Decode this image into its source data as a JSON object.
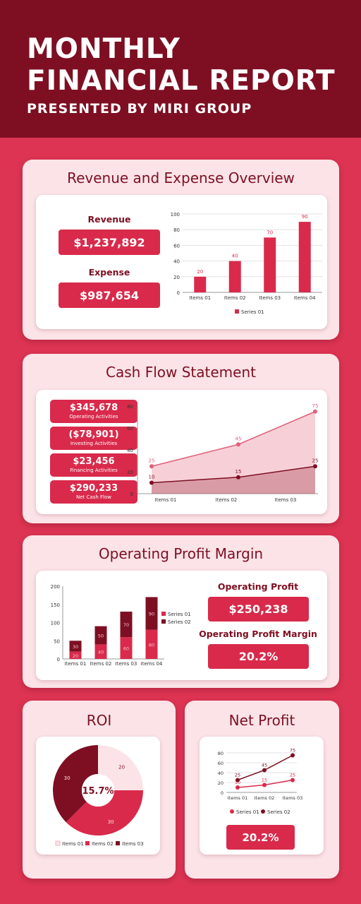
{
  "header": {
    "title_line1": "MONTHLY",
    "title_line2": "FINANCIAL REPORT",
    "subtitle": "PRESENTED BY MIRI GROUP"
  },
  "colors": {
    "background": "#dc3452",
    "header": "#7e0f22",
    "accent": "#d92a4b",
    "dark": "#7e0f22",
    "light": "#fbe3e7"
  },
  "revenue_section": {
    "title": "Revenue and Expense Overview",
    "revenue_label": "Revenue",
    "revenue_value": "$1,237,892",
    "expense_label": "Expense",
    "expense_value": "$987,654"
  },
  "cashflow_section": {
    "title": "Cash Flow Statement",
    "items": [
      {
        "value": "$345,678",
        "label": "Operating Activities"
      },
      {
        "value": "($78,901)",
        "label": "Investing Activities"
      },
      {
        "value": "$23,456",
        "label": "Financing Activities"
      },
      {
        "value": "$290,233",
        "label": "Net Cash Flow"
      }
    ]
  },
  "opm_section": {
    "title": "Operating Profit Margin",
    "profit_label": "Operating Profit",
    "profit_value": "$250,238",
    "margin_label": "Operating Profit Margin",
    "margin_value": "20.2%"
  },
  "roi_section": {
    "title": "ROI",
    "center_value": "15.7%"
  },
  "netprofit_section": {
    "title": "Net Profit",
    "value": "20.2%"
  },
  "chart_data": [
    {
      "id": "revenue-bar",
      "type": "bar",
      "categories": [
        "Items 01",
        "Items 02",
        "Items 03",
        "Items 04"
      ],
      "series": [
        {
          "name": "Series 01",
          "values": [
            20,
            40,
            70,
            90
          ]
        }
      ],
      "yticks": [
        0,
        20,
        40,
        60,
        80,
        100
      ],
      "ylim": [
        0,
        100
      ],
      "grid": true,
      "legend": "bottom"
    },
    {
      "id": "cashflow-area",
      "type": "area",
      "categories": [
        "Items 01",
        "Items 02",
        "Items 03"
      ],
      "series": [
        {
          "values": [
            25,
            45,
            75
          ]
        },
        {
          "values": [
            10,
            15,
            25
          ]
        }
      ],
      "yticks": [
        0,
        20,
        40,
        60,
        80
      ],
      "ylim": [
        0,
        80
      ],
      "grid": false
    },
    {
      "id": "opm-stacked-bar",
      "type": "bar",
      "stacked": true,
      "categories": [
        "Items 01",
        "Items 02",
        "Items 03",
        "Items 04"
      ],
      "series": [
        {
          "name": "Series 01",
          "values": [
            20,
            40,
            60,
            80
          ]
        },
        {
          "name": "Series 02",
          "values": [
            30,
            50,
            70,
            90
          ]
        }
      ],
      "yticks": [
        0,
        50,
        100,
        150,
        200
      ],
      "ylim": [
        0,
        200
      ],
      "grid": false,
      "legend": "right"
    },
    {
      "id": "roi-donut",
      "type": "pie",
      "slices": [
        {
          "label": "Items 01",
          "value": 20
        },
        {
          "label": "Items 02",
          "value": 30
        },
        {
          "label": "Items 03",
          "value": 30
        }
      ],
      "legend": "bottom"
    },
    {
      "id": "netprofit-line",
      "type": "line",
      "categories": [
        "Items 01",
        "Items 02",
        "Items 03"
      ],
      "series": [
        {
          "name": "Series 01",
          "values": [
            10,
            15,
            25
          ]
        },
        {
          "name": "Series 02",
          "values": [
            25,
            45,
            75
          ]
        }
      ],
      "yticks": [
        0,
        20,
        40,
        60,
        80
      ],
      "ylim": [
        0,
        80
      ],
      "grid": true,
      "legend": "bottom"
    }
  ]
}
